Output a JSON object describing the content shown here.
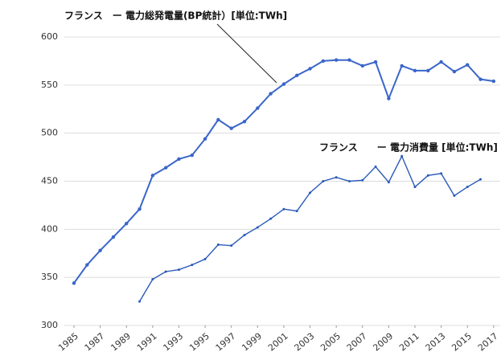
{
  "chart_data": {
    "type": "line",
    "x": [
      1985,
      1986,
      1987,
      1988,
      1989,
      1990,
      1991,
      1992,
      1993,
      1994,
      1995,
      1996,
      1997,
      1998,
      1999,
      2000,
      2001,
      2002,
      2003,
      2004,
      2005,
      2006,
      2007,
      2008,
      2009,
      2010,
      2011,
      2012,
      2013,
      2014,
      2015,
      2016,
      2017
    ],
    "series": [
      {
        "name": "フランス　ー 電力総発電量(BP統計）[単位:TWh]",
        "color": "#3a66c9",
        "values": [
          344,
          363,
          378,
          392,
          406,
          421,
          456,
          464,
          473,
          477,
          494,
          514,
          505,
          512,
          526,
          541,
          551,
          560,
          567,
          575,
          576,
          576,
          570,
          574,
          536,
          570,
          565,
          565,
          574,
          564,
          571,
          556,
          554
        ]
      },
      {
        "name": "フランス　　ー 電力消費量 [単位:TWh]",
        "color": "#2a5ab8",
        "values": [
          null,
          null,
          null,
          null,
          null,
          325,
          348,
          356,
          358,
          363,
          369,
          384,
          383,
          394,
          402,
          411,
          421,
          419,
          438,
          450,
          454,
          450,
          451,
          465,
          449,
          476,
          444,
          456,
          458,
          435,
          444,
          452,
          null
        ]
      }
    ],
    "xlim": [
      1985,
      2017.5
    ],
    "xticks": [
      1985,
      1987,
      1989,
      1991,
      1993,
      1995,
      1997,
      1999,
      2001,
      2003,
      2005,
      2007,
      2009,
      2011,
      2013,
      2015,
      2017
    ],
    "ylim": [
      300,
      600
    ],
    "yticks": [
      300,
      350,
      400,
      450,
      500,
      550,
      600
    ],
    "grid": true
  }
}
